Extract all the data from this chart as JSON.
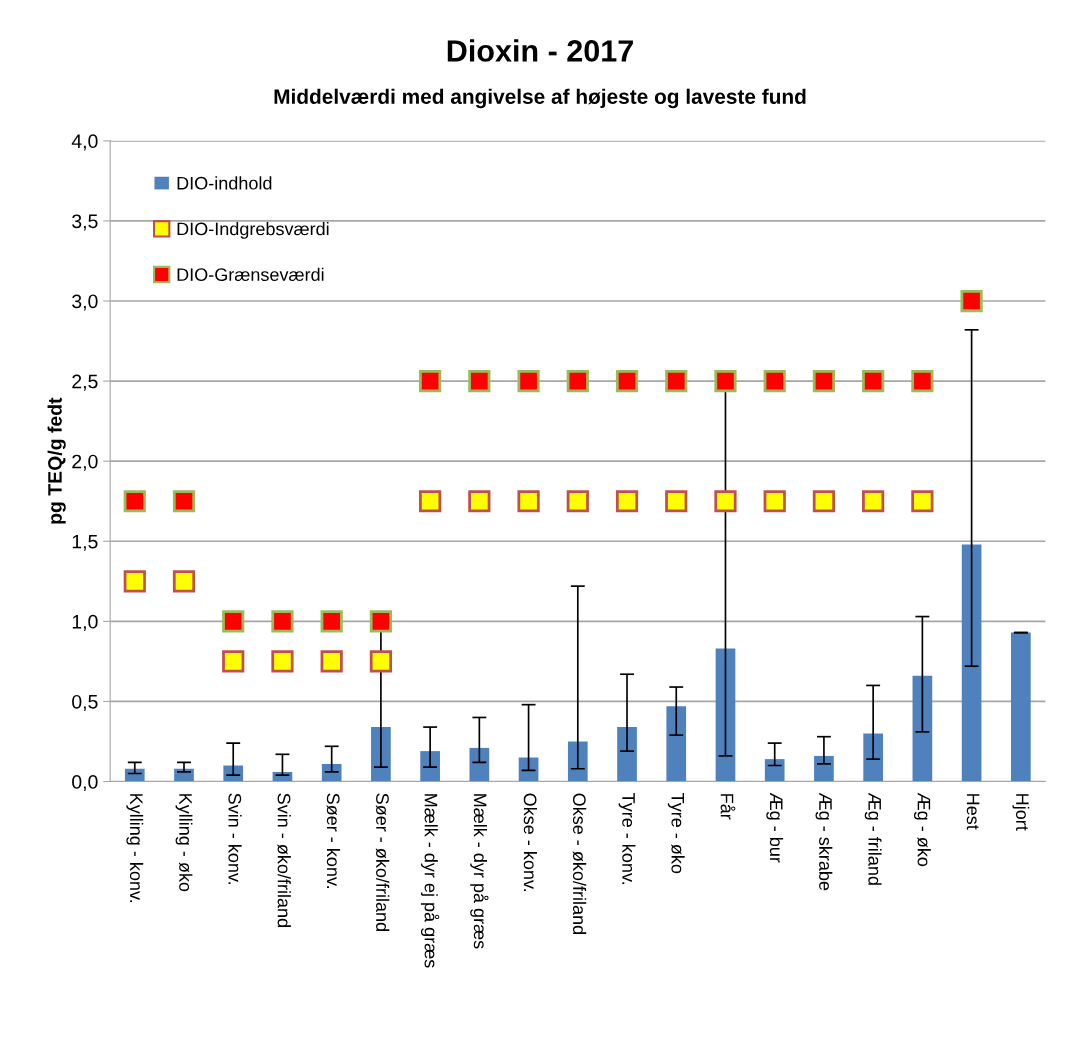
{
  "chart_data": {
    "type": "bar",
    "title": "Dioxin - 2017",
    "subtitle": "Middelværdi med angivelse af højeste og laveste fund",
    "ylabel": "pg TEQ/g fedt",
    "categories": [
      "Kylling - konv.",
      "Kylling - øko",
      "Svin - konv.",
      "Svin - øko/friland",
      "Søer - konv.",
      "Søer - øko/friland",
      "Mælk - dyr ej på græs",
      "Mælk - dyr på græs",
      "Okse - konv.",
      "Okse - øko/friland",
      "Tyre - konv.",
      "Tyre - øko",
      "Får",
      "Æg - bur",
      "Æg - skrabe",
      "Æg - friland",
      "Æg - øko",
      "Hest",
      "Hjort"
    ],
    "series": [
      {
        "name": "DIO-indhold",
        "color": "#4f81bd",
        "values": [
          0.08,
          0.08,
          0.1,
          0.06,
          0.11,
          0.34,
          0.19,
          0.21,
          0.15,
          0.25,
          0.34,
          0.47,
          0.83,
          0.14,
          0.16,
          0.3,
          0.66,
          1.48,
          0.93
        ],
        "errors": [
          [
            0.05,
            0.12
          ],
          [
            0.06,
            0.12
          ],
          [
            0.04,
            0.24
          ],
          [
            0.04,
            0.17
          ],
          [
            0.06,
            0.22
          ],
          [
            0.09,
            0.94
          ],
          [
            0.09,
            0.34
          ],
          [
            0.12,
            0.4
          ],
          [
            0.07,
            0.48
          ],
          [
            0.08,
            1.22
          ],
          [
            0.19,
            0.67
          ],
          [
            0.29,
            0.59
          ],
          [
            0.16,
            2.44
          ],
          [
            0.1,
            0.24
          ],
          [
            0.11,
            0.28
          ],
          [
            0.14,
            0.6
          ],
          [
            0.31,
            1.03
          ],
          [
            0.72,
            2.82
          ],
          [
            0.93,
            0.93
          ]
        ]
      },
      {
        "name": "DIO-Indgrebsværdi",
        "type": "scatter",
        "color": "#ffff00",
        "values": [
          1.25,
          1.25,
          0.75,
          0.75,
          0.75,
          0.75,
          1.75,
          1.75,
          1.75,
          1.75,
          1.75,
          1.75,
          1.75,
          1.75,
          1.75,
          1.75,
          1.75,
          null,
          null
        ]
      },
      {
        "name": "DIO-Grænseværdi",
        "type": "scatter",
        "color": "#ff0000",
        "values": [
          1.75,
          1.75,
          1.0,
          1.0,
          1.0,
          1.0,
          2.5,
          2.5,
          2.5,
          2.5,
          2.5,
          2.5,
          2.5,
          2.5,
          2.5,
          2.5,
          2.5,
          3.0,
          null
        ]
      }
    ],
    "ylim": [
      0,
      4
    ],
    "yticks": [
      {
        "value": 0,
        "label": "0,0"
      },
      {
        "value": 0.5,
        "label": "0,5"
      },
      {
        "value": 1,
        "label": "1,0"
      },
      {
        "value": 1.5,
        "label": "1,5"
      },
      {
        "value": 2,
        "label": "2,0"
      },
      {
        "value": 2.5,
        "label": "2,5"
      },
      {
        "value": 3,
        "label": "3,0"
      },
      {
        "value": 3.5,
        "label": "3,5"
      },
      {
        "value": 4,
        "label": "4,0"
      }
    ],
    "grid": "y",
    "legend": "top left",
    "marker": "square"
  }
}
